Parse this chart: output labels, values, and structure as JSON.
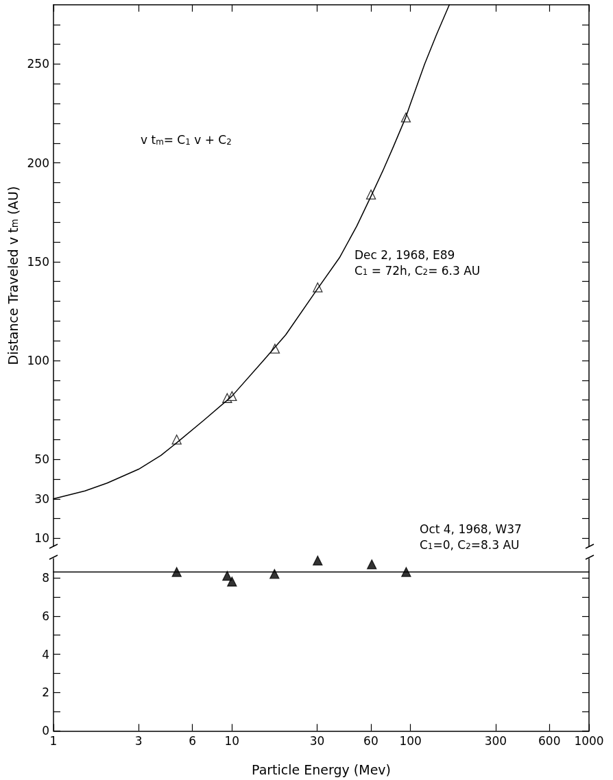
{
  "chart_data": [
    {
      "type": "scatter",
      "ylabel": "Distance Traveled v t$_{m}$ (AU)",
      "log": "x",
      "tick_labels": "y",
      "grid": false,
      "xlim": [
        1,
        1000
      ],
      "xticks": [
        1,
        3,
        6,
        10,
        30,
        60,
        100,
        300,
        600,
        1000
      ],
      "ylim": [
        6,
        280
      ],
      "yticks": [
        10,
        {
          "value": 20,
          "label": null
        },
        30,
        {
          "value": 40,
          "label": null
        },
        50,
        {
          "value": 60,
          "label": null
        },
        {
          "value": 70,
          "label": null
        },
        {
          "value": 80,
          "label": null
        },
        {
          "value": 90,
          "label": null
        },
        100,
        {
          "value": 110,
          "label": null
        },
        {
          "value": 120,
          "label": null
        },
        {
          "value": 130,
          "label": null
        },
        {
          "value": 140,
          "label": null
        },
        150,
        {
          "value": 160,
          "label": null
        },
        {
          "value": 170,
          "label": null
        },
        {
          "value": 180,
          "label": null
        },
        {
          "value": 190,
          "label": null
        },
        200,
        {
          "value": 210,
          "label": null
        },
        {
          "value": 220,
          "label": null
        },
        {
          "value": 230,
          "label": null
        },
        {
          "value": 240,
          "label": null
        },
        250,
        {
          "value": 260,
          "label": null
        },
        {
          "value": 270,
          "label": null
        }
      ],
      "series": [
        {
          "type": "line",
          "marker": "none",
          "line_style": "solid",
          "color": "#000000",
          "x": [
            1,
            1.5,
            2,
            3,
            4,
            5,
            7,
            10,
            15,
            20,
            30,
            40,
            50,
            60,
            70,
            80,
            94,
            100,
            120,
            140,
            165
          ],
          "values": [
            30,
            34,
            38,
            45,
            52,
            59,
            70,
            82,
            100,
            113,
            136,
            152,
            168,
            183,
            196,
            208,
            223,
            230,
            250,
            265,
            280
          ]
        },
        {
          "type": "scatter",
          "marker": "triangle",
          "color": "#ffffff",
          "x": [
            4.9,
            9.4,
            10,
            17.4,
            30.2,
            60.1,
            94.2
          ],
          "values": [
            60,
            81,
            82,
            106,
            137,
            184,
            223
          ]
        }
      ],
      "annotations": [
        "v t$_{m}$= C$_{1}$ v + C$_{2}$",
        "Dec 2, 1968, E89\nC$_{1}$ = 72h, C$_{2}$= 6.3 AU",
        "Oct 4, 1968, W37\nC$_{1}$=0, C$_{2}$=8.3 AU"
      ]
    },
    {
      "type": "scatter",
      "xlabel": "Particle Energy (Mev)",
      "log": "x",
      "grid": false,
      "xlim": [
        1,
        1000
      ],
      "xticks": [
        1,
        3,
        6,
        10,
        30,
        60,
        100,
        300,
        600,
        1000
      ],
      "ylim": [
        0,
        9
      ],
      "yticks": [
        0,
        {
          "value": 1,
          "label": null
        },
        2,
        {
          "value": 3,
          "label": null
        },
        4,
        {
          "value": 5,
          "label": null
        },
        6,
        {
          "value": 7,
          "label": null
        },
        8
      ],
      "series": [
        {
          "type": "line",
          "marker": "none",
          "line_style": "solid",
          "color": "#000000",
          "x": [
            1,
            1000
          ],
          "values": [
            8.3,
            8.3
          ]
        },
        {
          "type": "scatter",
          "marker": "triangle",
          "color": "#000000",
          "x": [
            4.9,
            9.4,
            10,
            17.3,
            30.2,
            60.7,
            94.6
          ],
          "values": [
            8.3,
            8.1,
            7.8,
            8.2,
            8.9,
            8.7,
            8.3
          ]
        }
      ]
    }
  ]
}
